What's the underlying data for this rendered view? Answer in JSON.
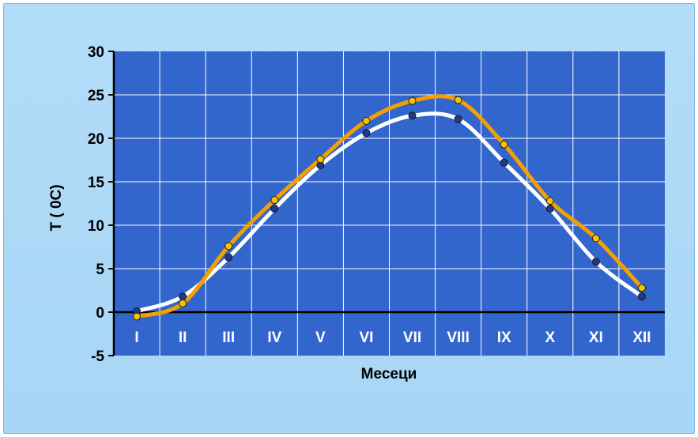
{
  "chart_data": {
    "type": "line",
    "title": "",
    "xlabel": "Месеци",
    "ylabel": "T ( 0C)",
    "categories": [
      "I",
      "II",
      "III",
      "IV",
      "V",
      "VI",
      "VII",
      "VIII",
      "IX",
      "X",
      "XI",
      "XII"
    ],
    "ylim": [
      -5,
      30
    ],
    "yticks": [
      30,
      25,
      20,
      15,
      10,
      5,
      0,
      -5
    ],
    "grid": true,
    "series": [
      {
        "color": "#ffffff",
        "marker": "#1f3a8a",
        "values": [
          0.1,
          1.8,
          6.3,
          11.9,
          16.9,
          20.6,
          22.6,
          22.2,
          17.2,
          11.9,
          5.8,
          1.8
        ]
      },
      {
        "color": "#f5a000",
        "marker": "#f5c400",
        "values": [
          -0.5,
          1.0,
          7.6,
          12.9,
          17.6,
          22.0,
          24.3,
          24.4,
          19.3,
          12.8,
          8.5,
          2.8
        ]
      }
    ],
    "colors": {
      "plot_bg": "#3366cc",
      "grid": "#ffffff"
    }
  }
}
